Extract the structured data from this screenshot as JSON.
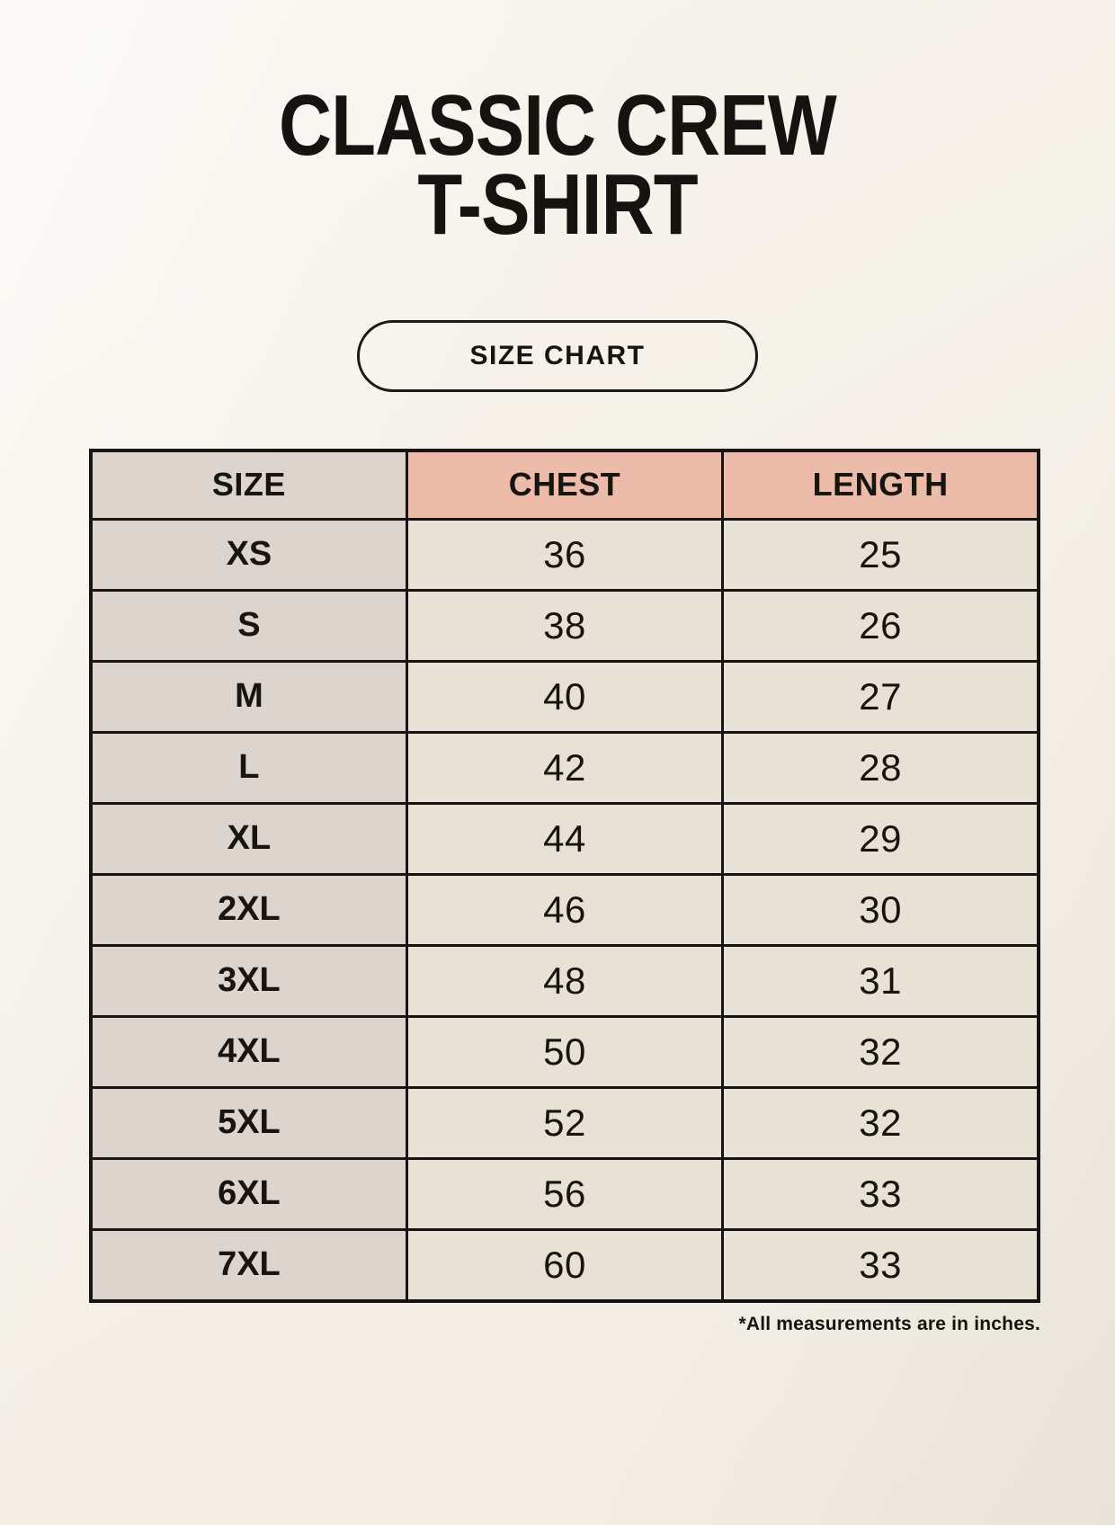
{
  "page": {
    "title_line1": "CLASSIC CREW",
    "title_line2": "T-SHIRT",
    "badge_label": "SIZE CHART",
    "footnote": "*All measurements are in inches."
  },
  "colors": {
    "background": "#f4f0e8",
    "header_accent": "#edbbaa",
    "size_column": "#ddd4ce",
    "data_cell": "#e8e1d5",
    "border": "#161513",
    "text": "#17150f"
  },
  "chart_data": {
    "type": "table",
    "title": "CLASSIC CREW T-SHIRT",
    "subtitle": "SIZE CHART",
    "units": "inches",
    "columns": [
      "SIZE",
      "CHEST",
      "LENGTH"
    ],
    "rows": [
      [
        "XS",
        36,
        25
      ],
      [
        "S",
        38,
        26
      ],
      [
        "M",
        40,
        27
      ],
      [
        "L",
        42,
        28
      ],
      [
        "XL",
        44,
        29
      ],
      [
        "2XL",
        46,
        30
      ],
      [
        "3XL",
        48,
        31
      ],
      [
        "4XL",
        50,
        32
      ],
      [
        "5XL",
        52,
        32
      ],
      [
        "6XL",
        56,
        33
      ],
      [
        "7XL",
        60,
        33
      ]
    ],
    "note": "*All measurements are in inches."
  }
}
